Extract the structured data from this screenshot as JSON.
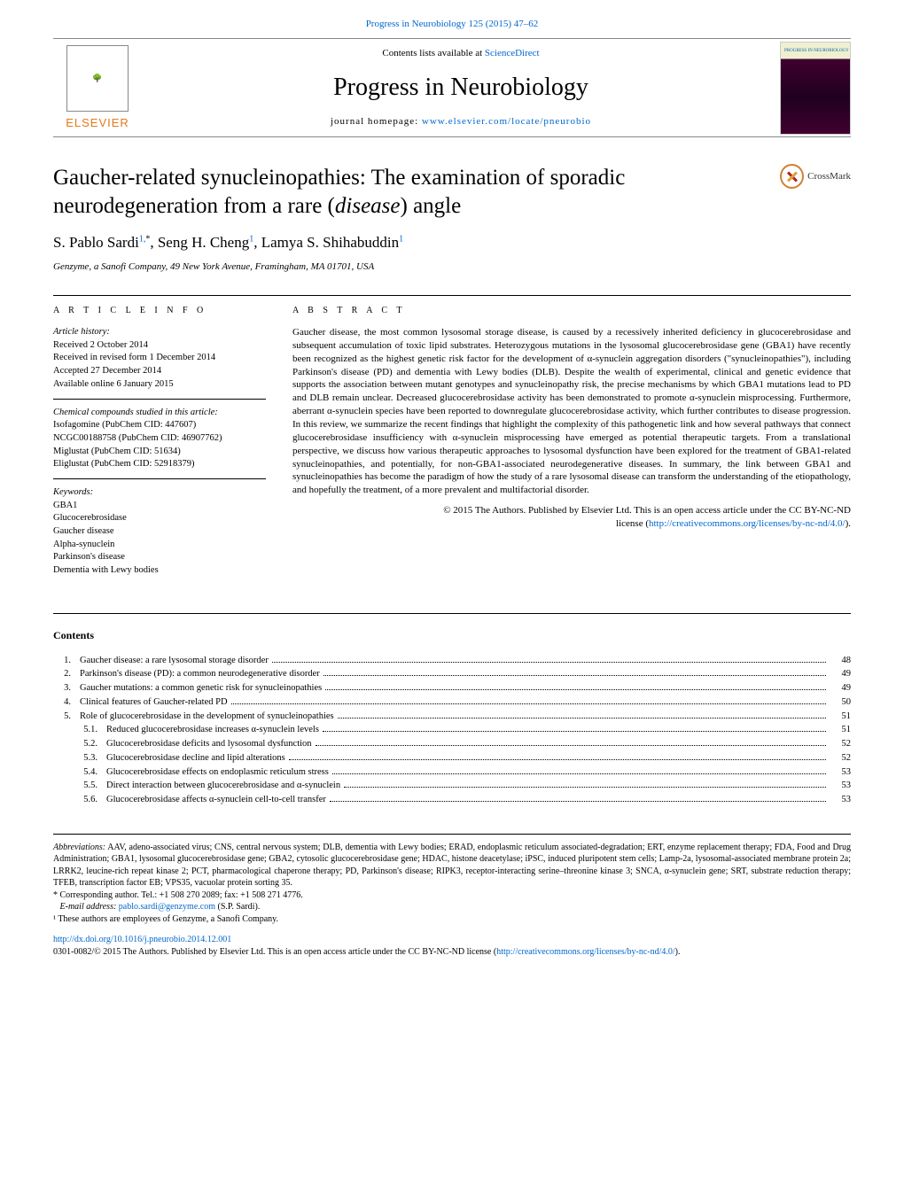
{
  "top_link": {
    "text": "Progress in Neurobiology 125 (2015) 47–62",
    "href": "#"
  },
  "header": {
    "elsevier": "ELSEVIER",
    "contents_prefix": "Contents lists available at ",
    "contents_link": "ScienceDirect",
    "journal": "Progress in Neurobiology",
    "homepage_prefix": "journal homepage: ",
    "homepage_link": "www.elsevier.com/locate/pneurobio",
    "cover_label": "PROGRESS IN NEUROBIOLOGY"
  },
  "title_line1": "Gaucher-related synucleinopathies: The examination of sporadic",
  "title_line2a": "neurodegeneration from a rare (",
  "title_line2_ital": "disease",
  "title_line2b": ") angle",
  "crossmark": "CrossMark",
  "authors": {
    "a1": "S. Pablo Sardi",
    "s1": "1,",
    "star": "*",
    "a2": ", Seng H. Cheng",
    "s2": "1",
    "a3": ", Lamya S. Shihabuddin",
    "s3": "1"
  },
  "affiliation": "Genzyme, a Sanofi Company, 49 New York Avenue, Framingham, MA 01701, USA",
  "info": {
    "heading": "A R T I C L E   I N F O",
    "history_label": "Article history:",
    "history": [
      "Received 2 October 2014",
      "Received in revised form 1 December 2014",
      "Accepted 27 December 2014",
      "Available online 6 January 2015"
    ],
    "compounds_label": "Chemical compounds studied in this article:",
    "compounds": [
      "Isofagomine (PubChem CID: 447607)",
      "NCGC00188758 (PubChem CID: 46907762)",
      "Miglustat (PubChem CID: 51634)",
      "Eliglustat (PubChem CID: 52918379)"
    ],
    "keywords_label": "Keywords:",
    "keywords": [
      "GBA1",
      "Glucocerebrosidase",
      "Gaucher disease",
      "Alpha-synuclein",
      "Parkinson's disease",
      "Dementia with Lewy bodies"
    ]
  },
  "abstract": {
    "heading": "A B S T R A C T",
    "text": "Gaucher disease, the most common lysosomal storage disease, is caused by a recessively inherited deficiency in glucocerebrosidase and subsequent accumulation of toxic lipid substrates. Heterozygous mutations in the lysosomal glucocerebrosidase gene (GBA1) have recently been recognized as the highest genetic risk factor for the development of α-synuclein aggregation disorders (\"synucleinopathies\"), including Parkinson's disease (PD) and dementia with Lewy bodies (DLB). Despite the wealth of experimental, clinical and genetic evidence that supports the association between mutant genotypes and synucleinopathy risk, the precise mechanisms by which GBA1 mutations lead to PD and DLB remain unclear. Decreased glucocerebrosidase activity has been demonstrated to promote α-synuclein misprocessing. Furthermore, aberrant α-synuclein species have been reported to downregulate glucocerebrosidase activity, which further contributes to disease progression. In this review, we summarize the recent findings that highlight the complexity of this pathogenetic link and how several pathways that connect glucocerebrosidase insufficiency with α-synuclein misprocessing have emerged as potential therapeutic targets. From a translational perspective, we discuss how various therapeutic approaches to lysosomal dysfunction have been explored for the treatment of GBA1-related synucleinopathies, and potentially, for non-GBA1-associated neurodegenerative diseases. In summary, the link between GBA1 and synucleinopathies has become the paradigm of how the study of a rare lysosomal disease can transform the understanding of the etiopathology, and hopefully the treatment, of a more prevalent and multifactorial disorder.",
    "copyright": "© 2015 The Authors. Published by Elsevier Ltd. This is an open access article under the CC BY-NC-ND",
    "license_prefix": "license (",
    "license_link": "http://creativecommons.org/licenses/by-nc-nd/4.0/",
    "license_suffix": ")."
  },
  "contents_heading": "Contents",
  "toc": [
    {
      "num": "1.",
      "title": "Gaucher disease: a rare lysosomal storage disorder",
      "page": "48"
    },
    {
      "num": "2.",
      "title": "Parkinson's disease (PD): a common neurodegenerative disorder",
      "page": "49"
    },
    {
      "num": "3.",
      "title": "Gaucher mutations: a common genetic risk for synucleinopathies",
      "page": "49"
    },
    {
      "num": "4.",
      "title": "Clinical features of Gaucher-related PD",
      "page": "50"
    },
    {
      "num": "5.",
      "title": "Role of glucocerebrosidase in the development of synucleinopathies",
      "page": "51"
    }
  ],
  "toc_sub": [
    {
      "num": "5.1.",
      "title": "Reduced glucocerebrosidase increases α-synuclein levels",
      "page": "51"
    },
    {
      "num": "5.2.",
      "title": "Glucocerebrosidase deficits and lysosomal dysfunction",
      "page": "52"
    },
    {
      "num": "5.3.",
      "title": "Glucocerebrosidase decline and lipid alterations",
      "page": "52"
    },
    {
      "num": "5.4.",
      "title": "Glucocerebrosidase effects on endoplasmic reticulum stress",
      "page": "53"
    },
    {
      "num": "5.5.",
      "title": "Direct interaction between glucocerebrosidase and α-synuclein",
      "page": "53"
    },
    {
      "num": "5.6.",
      "title": "Glucocerebrosidase affects α-synuclein cell-to-cell transfer",
      "page": "53"
    }
  ],
  "footer": {
    "abbrev_label": "Abbreviations:",
    "abbrev_text": " AAV, adeno-associated virus; CNS, central nervous system; DLB, dementia with Lewy bodies; ERAD, endoplasmic reticulum associated-degradation; ERT, enzyme replacement therapy; FDA, Food and Drug Administration; GBA1, lysosomal glucocerebrosidase gene; GBA2, cytosolic glucocerebrosidase gene; HDAC, histone deacetylase; iPSC, induced pluripotent stem cells; Lamp-2a, lysosomal-associated membrane protein 2a; LRRK2, leucine-rich repeat kinase 2; PCT, pharmacological chaperone therapy; PD, Parkinson's disease; RIPK3, receptor-interacting serine–threonine kinase 3; SNCA, α-synuclein gene; SRT, substrate reduction therapy; TFEB, transcription factor EB; VPS35, vacuolar protein sorting 35.",
    "corr": "* Corresponding author. Tel.: +1 508 270 2089; fax: +1 508 271 4776.",
    "email_label": "E-mail address:",
    "email_link": "pablo.sardi@genzyme.com",
    "email_suffix": " (S.P. Sardi).",
    "note1": "¹ These authors are employees of Genzyme, a Sanofi Company.",
    "doi_link": "http://dx.doi.org/10.1016/j.pneurobio.2014.12.001",
    "issn_line_a": "0301-0082/© 2015 The Authors. Published by Elsevier Ltd. This is an open access article under the CC BY-NC-ND license (",
    "issn_link": "http://creativecommons.org/licenses/by-nc-nd/4.0/",
    "issn_line_b": ")."
  }
}
